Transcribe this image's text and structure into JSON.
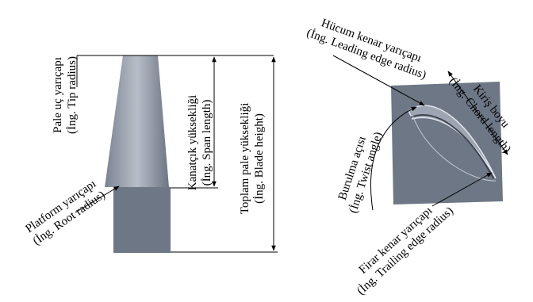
{
  "left": {
    "tip_radius": {
      "name": "Pale uç yarıçapı",
      "english": "(İng. Tip radius)"
    },
    "span_length": {
      "name": "Kanatçık yüksekliği",
      "english": "(İng. Span length)"
    },
    "blade_height": {
      "name": "Toplam pale yüksekliği",
      "english": "(İng. Blade height)"
    },
    "root_radius": {
      "name": "Platform yarıçapı",
      "english": "(İng. Root radius)"
    }
  },
  "right": {
    "leading_edge_radius": {
      "name": "Hücum kenar yarıçapı",
      "english": "(İng. Leading edge radius)"
    },
    "chord_length": {
      "name": "Kiriş boyu",
      "english": "(İng. Chord length)"
    },
    "twist_angle": {
      "name": "Burulma açısı",
      "english": "(İng. Twist angle)"
    },
    "trailing_edge_radius": {
      "name": "Firar kenar yarıçapı",
      "english": "(İng. Trailing edge radius)"
    }
  }
}
